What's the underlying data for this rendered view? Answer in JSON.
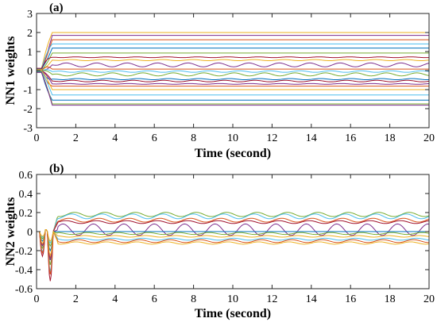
{
  "chart_data": [
    {
      "type": "line",
      "panel_label": "(a)",
      "xlabel": "Time (second)",
      "ylabel": "NN1 weights",
      "xlim": [
        0,
        20
      ],
      "ylim": [
        -3,
        3
      ],
      "xticks": [
        0,
        2,
        4,
        6,
        8,
        10,
        12,
        14,
        16,
        18,
        20
      ],
      "yticks": [
        -3,
        -2,
        -1,
        0,
        1,
        2,
        3
      ],
      "grid": false,
      "series": [
        {
          "color": "#EDB120",
          "start": 0.1,
          "final": 2.0,
          "osc_amp": 0.0
        },
        {
          "color": "#7E2F8E",
          "start": 0.0,
          "final": 1.85,
          "osc_amp": 0.0
        },
        {
          "color": "#D95319",
          "start": 0.05,
          "final": 1.62,
          "osc_amp": 0.0
        },
        {
          "color": "#4DBEEE",
          "start": 0.1,
          "final": 1.4,
          "osc_amp": 0.0
        },
        {
          "color": "#0072BD",
          "start": 0.08,
          "final": 1.18,
          "osc_amp": 0.0
        },
        {
          "color": "#77AC30",
          "start": 0.0,
          "final": 0.92,
          "osc_amp": 0.0
        },
        {
          "color": "#A2142F",
          "start": 0.12,
          "final": 0.7,
          "osc_amp": 0.02
        },
        {
          "color": "#EDB120",
          "start": 0.05,
          "final": 0.55,
          "osc_amp": 0.03
        },
        {
          "color": "#7E2F8E",
          "start": 0.0,
          "final": 0.3,
          "osc_amp": 0.1
        },
        {
          "color": "#D95319",
          "start": 0.0,
          "final": 0.08,
          "osc_amp": 0.0
        },
        {
          "color": "#4DBEEE",
          "start": 0.0,
          "final": -0.05,
          "osc_amp": 0.04
        },
        {
          "color": "#77AC30",
          "start": 0.0,
          "final": -0.2,
          "osc_amp": 0.08
        },
        {
          "color": "#0072BD",
          "start": 0.0,
          "final": -0.45,
          "osc_amp": 0.03
        },
        {
          "color": "#A2142F",
          "start": 0.0,
          "final": -0.55,
          "osc_amp": 0.04
        },
        {
          "color": "#7E2F8E",
          "start": 0.0,
          "final": -0.7,
          "osc_amp": 0.02
        },
        {
          "color": "#D95319",
          "start": 0.0,
          "final": -0.82,
          "osc_amp": 0.0
        },
        {
          "color": "#EDB120",
          "start": 0.0,
          "final": -1.0,
          "osc_amp": 0.0
        },
        {
          "color": "#4DBEEE",
          "start": -0.05,
          "final": -1.28,
          "osc_amp": 0.0
        },
        {
          "color": "#0072BD",
          "start": -0.05,
          "final": -1.55,
          "osc_amp": 0.0
        },
        {
          "color": "#77AC30",
          "start": -0.08,
          "final": -1.75,
          "osc_amp": 0.0
        },
        {
          "color": "#7E2F8E",
          "start": -0.1,
          "final": -1.82,
          "osc_amp": 0.0
        }
      ]
    },
    {
      "type": "line",
      "panel_label": "(b)",
      "xlabel": "Time (second)",
      "ylabel": "NN2 weights",
      "xlim": [
        0,
        20
      ],
      "ylim": [
        -0.6,
        0.6
      ],
      "xticks": [
        0,
        2,
        4,
        6,
        8,
        10,
        12,
        14,
        16,
        18,
        20
      ],
      "yticks": [
        -0.6,
        -0.4,
        -0.2,
        0,
        0.2,
        0.4,
        0.6
      ],
      "grid": false,
      "series": [
        {
          "color": "#77AC30",
          "base": 0.18,
          "osc_amp": 0.022,
          "dip": -0.35
        },
        {
          "color": "#4DBEEE",
          "base": 0.16,
          "osc_amp": 0.025,
          "dip": -0.42
        },
        {
          "color": "#D95319",
          "base": 0.12,
          "osc_amp": 0.02,
          "dip": -0.28
        },
        {
          "color": "#A2142F",
          "base": 0.1,
          "osc_amp": 0.015,
          "dip": -0.52
        },
        {
          "color": "#7E2F8E",
          "base": 0.02,
          "osc_amp": 0.06,
          "dip": -0.3
        },
        {
          "color": "#0072BD",
          "base": 0.0,
          "osc_amp": 0.0,
          "dip": -0.2
        },
        {
          "color": "#77AC30",
          "base": -0.02,
          "osc_amp": 0.01,
          "dip": -0.15
        },
        {
          "color": "#EDB120",
          "base": -0.05,
          "osc_amp": 0.008,
          "dip": -0.25
        },
        {
          "color": "#4DBEEE",
          "base": -0.08,
          "osc_amp": 0.01,
          "dip": -0.12
        },
        {
          "color": "#D95319",
          "base": -0.1,
          "osc_amp": 0.015,
          "dip": -0.45
        },
        {
          "color": "#EDB120",
          "base": -0.12,
          "osc_amp": 0.012,
          "dip": -0.1
        }
      ]
    }
  ]
}
